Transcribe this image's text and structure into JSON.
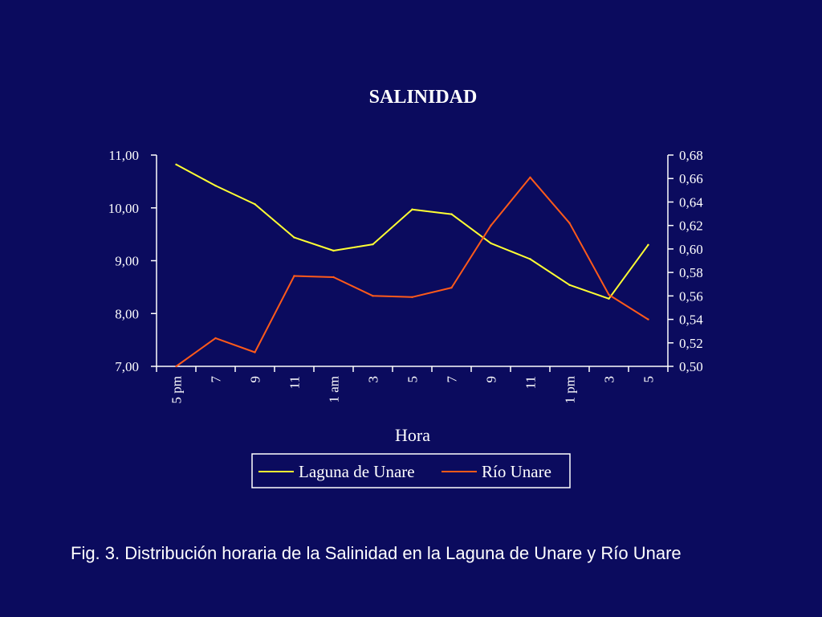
{
  "caption": "Fig. 3. Distribución horaria de la Salinidad en la Laguna de Unare y Río Unare",
  "colors": {
    "background": "#0b0b5e",
    "laguna": "#ffff33",
    "rio": "#ff5a1a",
    "axes": "#ffffff"
  },
  "chart_data": {
    "type": "line",
    "title": "SALINIDAD",
    "xlabel": "Hora",
    "categories": [
      "5 pm",
      "7",
      "9",
      "11",
      "1 am",
      "3",
      "5",
      "7",
      "9",
      "11",
      "1 pm",
      "3",
      "5"
    ],
    "y_left": {
      "min": 7.0,
      "max": 11.0,
      "ticks": [
        "7,00",
        "8,00",
        "9,00",
        "10,00",
        "11,00"
      ],
      "tick_values": [
        7,
        8,
        9,
        10,
        11
      ]
    },
    "y_right": {
      "min": 0.5,
      "max": 0.68,
      "ticks": [
        "0,50",
        "0,52",
        "0,54",
        "0,56",
        "0,58",
        "0,60",
        "0,62",
        "0,64",
        "0,66",
        "0,68"
      ],
      "tick_values": [
        0.5,
        0.52,
        0.54,
        0.56,
        0.58,
        0.6,
        0.62,
        0.64,
        0.66,
        0.68
      ]
    },
    "series": [
      {
        "name": "Laguna de Unare",
        "axis": "left",
        "color": "#ffff33",
        "values": [
          10.82,
          10.42,
          10.07,
          9.44,
          9.19,
          9.31,
          9.97,
          9.88,
          9.33,
          9.03,
          8.54,
          8.28,
          9.3
        ]
      },
      {
        "name": "Río Unare",
        "axis": "right",
        "color": "#ff5a1a",
        "values": [
          0.5,
          0.524,
          0.512,
          0.577,
          0.576,
          0.56,
          0.559,
          0.567,
          0.62,
          0.661,
          0.622,
          0.561,
          0.54
        ]
      }
    ],
    "legend": "bottom",
    "grid": false
  }
}
